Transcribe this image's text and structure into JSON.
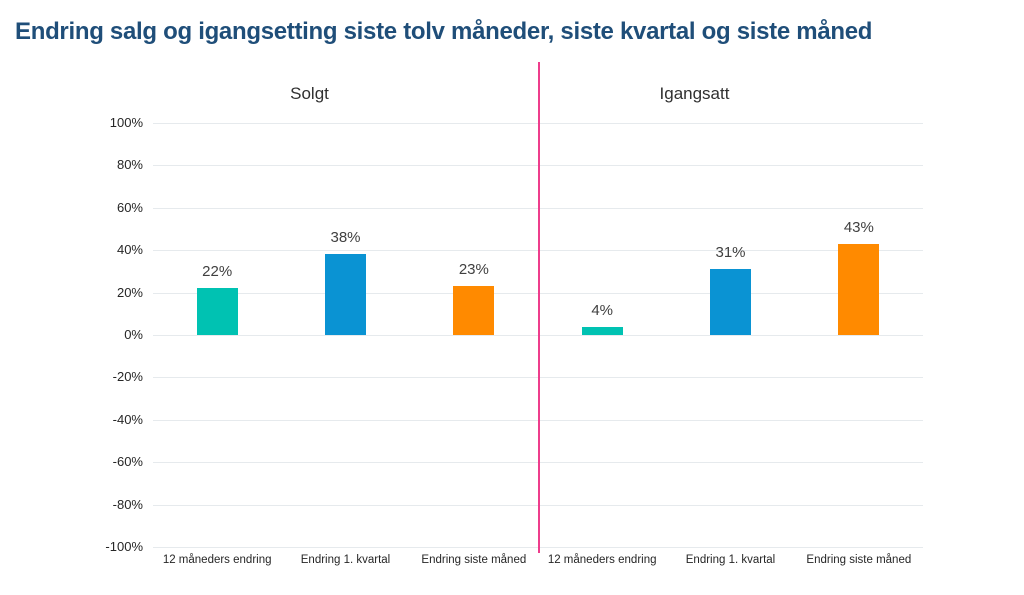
{
  "title": "Endring salg og igangsetting siste tolv måneder, siste kvartal og siste måned",
  "colors": {
    "title": "#1F4E79",
    "axis_text": "#262626",
    "value_label": "#404040",
    "gridline": "#E6EAED",
    "divider_pink": "#EE3D8C"
  },
  "chart_data": {
    "type": "bar",
    "title": "Endring salg og igangsetting siste tolv måneder, siste kvartal og siste måned",
    "panels": [
      {
        "title": "Solgt",
        "categories": [
          "12 måneders endring",
          "Endring 1. kvartal",
          "Endring siste måned"
        ],
        "values": [
          22,
          38,
          23
        ]
      },
      {
        "title": "Igangsatt",
        "categories": [
          "12 måneders endring",
          "Endring 1. kvartal",
          "Endring siste måned"
        ],
        "values": [
          4,
          31,
          43
        ]
      }
    ],
    "bar_colors": [
      "#00C2B2",
      "#0A93D3",
      "#FF8A00"
    ],
    "value_suffix": "%",
    "y_ticks": [
      "100%",
      "80%",
      "60%",
      "40%",
      "20%",
      "0%",
      "-20%",
      "-40%",
      "-60%",
      "-80%",
      "-100%"
    ],
    "ylim": [
      -100,
      100
    ],
    "grid": true,
    "legend": false,
    "xlabel": "",
    "ylabel": ""
  }
}
